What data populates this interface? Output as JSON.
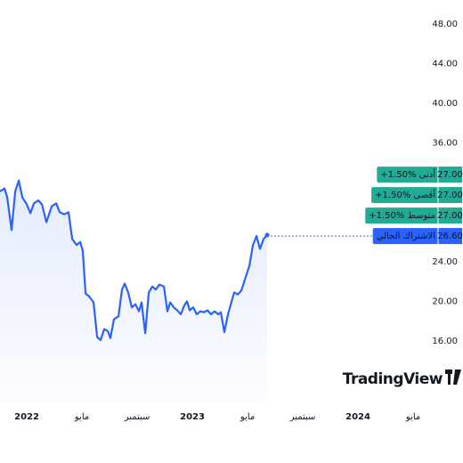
{
  "chart_data": {
    "type": "line",
    "x": [
      -1.94,
      -1.61,
      -1.42,
      -1.1,
      -0.84,
      -0.58,
      -0.32,
      0,
      0.26,
      0.52,
      0.84,
      1.1,
      1.42,
      1.81,
      2.13,
      2.39,
      2.71,
      3.03,
      3.29,
      3.61,
      3.87,
      4.06,
      4.26,
      4.52,
      4.84,
      5.1,
      5.35,
      5.61,
      5.87,
      6.06,
      6.32,
      6.65,
      6.9,
      7.1,
      7.35,
      7.61,
      7.87,
      8.13,
      8.32,
      8.58,
      8.84,
      9.1,
      9.35,
      9.61,
      9.94,
      10.19,
      10.39,
      10.65,
      10.9,
      11.16,
      11.42,
      11.61,
      11.81,
      12.06,
      12.32,
      12.58,
      12.84,
      13.1,
      13.35,
      13.61,
      13.87,
      14.06,
      14.32,
      14.58,
      14.84,
      15.03,
      15.29,
      15.55,
      15.87,
      16.13,
      16.39,
      16.65,
      16.9,
      17.16,
      17.42
    ],
    "series": [
      {
        "color": "#2962ff",
        "values": [
          31.1,
          31.4,
          30.5,
          27.2,
          31.1,
          32.2,
          30.5,
          29.8,
          28.9,
          29.9,
          30.2,
          29.8,
          28.0,
          29.6,
          29.9,
          29.0,
          28.8,
          29.0,
          26.3,
          25.7,
          26.0,
          25.1,
          20.8,
          20.5,
          19.9,
          16.4,
          16.1,
          17.2,
          17.0,
          16.3,
          18.2,
          18.5,
          21.2,
          21.8,
          20.9,
          19.4,
          19.7,
          19.0,
          19.9,
          16.8,
          20.9,
          21.5,
          21.2,
          21.7,
          21.5,
          19.0,
          19.9,
          19.4,
          19.1,
          18.7,
          19.6,
          20.0,
          19.1,
          19.4,
          18.7,
          19.0,
          18.9,
          19.1,
          18.7,
          19.0,
          18.7,
          18.9,
          16.9,
          18.7,
          20.0,
          20.9,
          20.7,
          21.1,
          22.5,
          23.6,
          25.7,
          26.6,
          25.3,
          26.3,
          26.7
        ]
      }
    ],
    "xlim": [
      -1.94,
      29.35
    ],
    "xticks": [
      {
        "value": 0,
        "label": "2022"
      },
      {
        "value": 4,
        "label": "مايو"
      },
      {
        "value": 8,
        "label": "سبتمبر"
      },
      {
        "value": 12,
        "label": "2023"
      },
      {
        "value": 16,
        "label": "مايو"
      },
      {
        "value": 20,
        "label": "سبتمبر"
      },
      {
        "value": 24,
        "label": "2024"
      },
      {
        "value": 28,
        "label": "مايو"
      }
    ],
    "ylim": [
      10,
      50
    ],
    "yticks": [
      {
        "value": 48,
        "label": "48.00"
      },
      {
        "value": 44,
        "label": "44.00"
      },
      {
        "value": 40,
        "label": "40.00"
      },
      {
        "value": 36,
        "label": "36.00"
      },
      {
        "value": 24,
        "label": "24.00"
      },
      {
        "value": 20,
        "label": "20.00"
      },
      {
        "value": 16,
        "label": "16.00"
      }
    ],
    "grid": false,
    "price_labels": [
      {
        "text": "أدنى ‎+1.50%",
        "value": 27,
        "value_label": "27.00",
        "color": "#22ab94"
      },
      {
        "text": "أقصى ‎+1.50%",
        "value": 27,
        "value_label": "27.00",
        "color": "#22ab94"
      },
      {
        "text": "متوسط ‎+1.50%",
        "value": 27,
        "value_label": "27.00",
        "color": "#22ab94"
      },
      {
        "text": "الاشتراك الحالي",
        "value": 26.6,
        "value_label": "26.60",
        "color": "#2962ff"
      }
    ],
    "watermark": "TradingView"
  }
}
